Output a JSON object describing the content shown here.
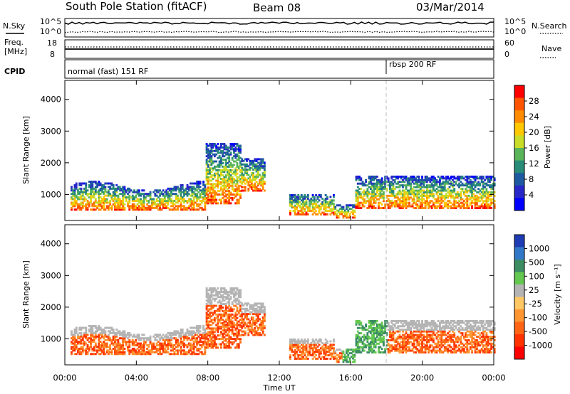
{
  "header": {
    "station": "South Pole Station (fitACF)",
    "beam": "Beam 08",
    "date": "03/Mar/2014"
  },
  "top_panels": {
    "nsky_label": "N.Sky",
    "nsearch_label": "N.Search",
    "noise_ticks": [
      "10^5",
      "10^0"
    ],
    "freq_label_1": "Freq.",
    "freq_label_2": "[MHz]",
    "freq_ticks": [
      "18",
      "8"
    ],
    "nave_label": "Nave",
    "nave_ticks": [
      "60",
      "0"
    ],
    "cpid_label": "CPID",
    "cpid_modes": [
      {
        "text": "normal (fast) 151 RF",
        "start_hour": 0
      },
      {
        "text": "rbsp 200 RF",
        "start_hour": 18
      }
    ]
  },
  "chart_data": [
    {
      "type": "heatmap",
      "name": "power",
      "xlabel": "",
      "ylabel": "Slant Range [km]",
      "xlim": [
        0,
        24
      ],
      "ylim": [
        180,
        4600
      ],
      "yticks": [
        "4000",
        "3000",
        "2000",
        "1000"
      ],
      "colorbar": {
        "label": "Power [dB]",
        "ticks": [
          "28",
          "24",
          "20",
          "16",
          "12",
          "8",
          "4"
        ],
        "colors": [
          "#ff0000",
          "#ff5500",
          "#ff8c00",
          "#ffc800",
          "#c8dc28",
          "#5ab45a",
          "#288c78",
          "#1e5aa0",
          "#2828c8",
          "#0000ff"
        ]
      }
    },
    {
      "type": "heatmap",
      "name": "velocity",
      "xlabel": "Time UT",
      "ylabel": "Slant Range [km]",
      "xlim": [
        0,
        24
      ],
      "ylim": [
        180,
        4600
      ],
      "yticks": [
        "4000",
        "3000",
        "2000",
        "1000"
      ],
      "xticks": [
        "00:00",
        "04:00",
        "08:00",
        "12:00",
        "16:00",
        "20:00",
        "00:00"
      ],
      "colorbar": {
        "label": "Velocity [m s⁻¹]",
        "ticks": [
          "1000",
          "500",
          "100",
          "25",
          "-25",
          "-100",
          "-500",
          "-1000"
        ],
        "colors": [
          "#1e3cb4",
          "#3278c8",
          "#3c8c64",
          "#64c850",
          "#b4b4b4",
          "#ffc864",
          "#ff9632",
          "#ff6414",
          "#ff3200",
          "#ff0000"
        ]
      }
    }
  ]
}
